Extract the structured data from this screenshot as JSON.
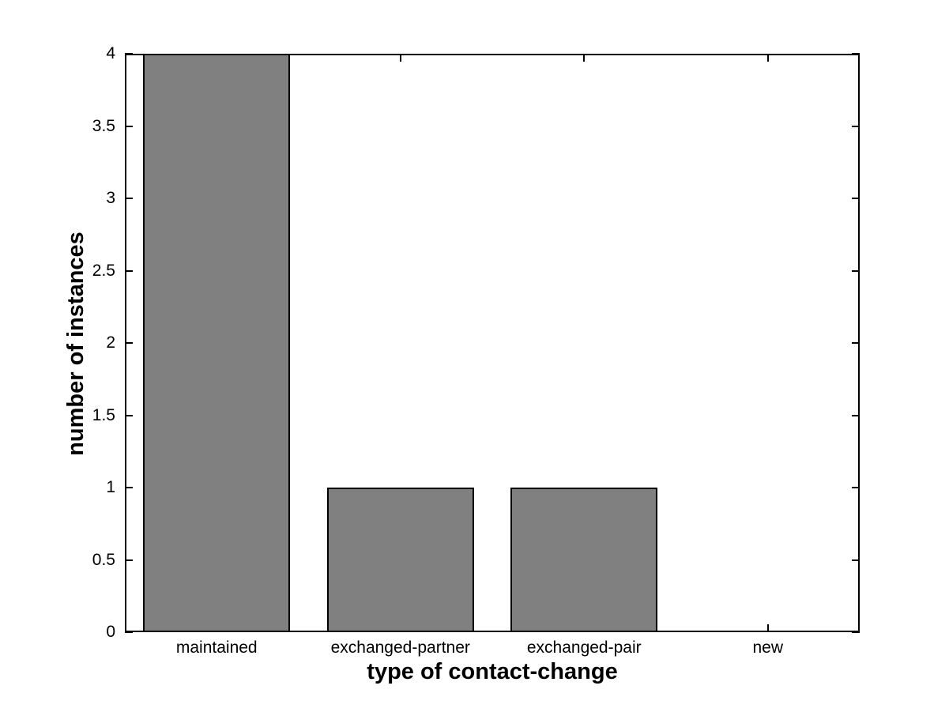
{
  "chart_data": {
    "type": "bar",
    "categories": [
      "maintained",
      "exchanged-partner",
      "exchanged-pair",
      "new"
    ],
    "values": [
      4,
      1,
      1,
      0
    ],
    "title": "",
    "xlabel": "type of contact-change",
    "ylabel": "number of instances",
    "ylim": [
      0,
      4
    ],
    "yticks": [
      0,
      0.5,
      1,
      1.5,
      2,
      2.5,
      3,
      3.5,
      4
    ],
    "bar_color": "#808080",
    "bar_edge_color": "#000000",
    "axis_color": "#000000",
    "bar_width_fraction": 0.8,
    "grid": false,
    "box": true,
    "legend": "none"
  }
}
